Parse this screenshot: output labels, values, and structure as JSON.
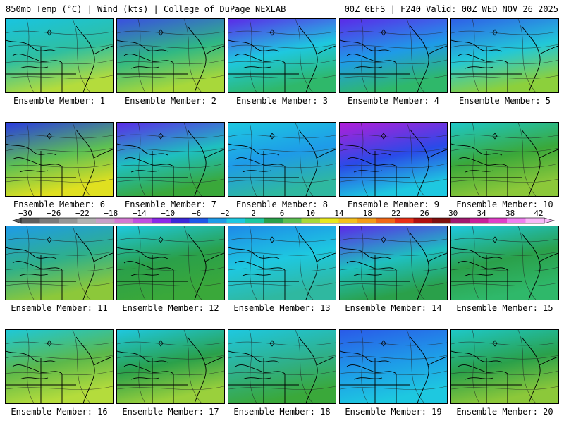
{
  "header": {
    "left": "850mb Temp (°C) | Wind (kts) | College of DuPage NEXLAB",
    "right": "00Z GEFS | F240 Valid: 00Z WED NOV 26 2025"
  },
  "panels": [
    {
      "caption": "Ensemble Member: 1",
      "base": "#2fbfa0",
      "north": "#19c4e0",
      "south": "#b4dc3c"
    },
    {
      "caption": "Ensemble Member: 2",
      "base": "#2fb884",
      "north": "#3a4fe0",
      "south": "#a8d83a"
    },
    {
      "caption": "Ensemble Member: 3",
      "base": "#1ec8e0",
      "north": "#5b2ae8",
      "south": "#2fb86a"
    },
    {
      "caption": "Ensemble Member: 4",
      "base": "#1e9be8",
      "north": "#5b2ae8",
      "south": "#2fb86a"
    },
    {
      "caption": "Ensemble Member: 5",
      "base": "#22c8d8",
      "north": "#2f5fe8",
      "south": "#8cd03c"
    },
    {
      "caption": "Ensemble Member: 6",
      "base": "#5cc054",
      "north": "#2a3ae0",
      "south": "#e0e020"
    },
    {
      "caption": "Ensemble Member: 7",
      "base": "#1ec0c0",
      "north": "#5a2ae8",
      "south": "#3aa83a"
    },
    {
      "caption": "Ensemble Member: 8",
      "base": "#1e9be8",
      "north": "#1ec8e0",
      "south": "#2fb8a0"
    },
    {
      "caption": "Ensemble Member: 9",
      "base": "#2a4ae8",
      "north": "#b21ed8",
      "south": "#1ec8e0"
    },
    {
      "caption": "Ensemble Member: 10",
      "base": "#3aa83a",
      "north": "#1ec8c8",
      "south": "#8cc83a"
    },
    {
      "caption": "Ensemble Member: 11",
      "base": "#2fb08a",
      "north": "#1e9be8",
      "south": "#8cc83a"
    },
    {
      "caption": "Ensemble Member: 12",
      "base": "#2aa04a",
      "north": "#1ec8e0",
      "south": "#3aa83a"
    },
    {
      "caption": "Ensemble Member: 13",
      "base": "#1ec8e0",
      "north": "#1e8ae8",
      "south": "#2fb8a0"
    },
    {
      "caption": "Ensemble Member: 14",
      "base": "#1ec0c0",
      "north": "#5b2ae8",
      "south": "#2aa04a"
    },
    {
      "caption": "Ensemble Member: 15",
      "base": "#2aa04a",
      "north": "#1ec8e0",
      "south": "#2fb86a"
    },
    {
      "caption": "Ensemble Member: 16",
      "base": "#5cb84a",
      "north": "#1ec8d8",
      "south": "#b4dc3c"
    },
    {
      "caption": "Ensemble Member: 17",
      "base": "#2aa04a",
      "north": "#1ec8e0",
      "south": "#9ad03c"
    },
    {
      "caption": "Ensemble Member: 18",
      "base": "#2fb08a",
      "north": "#1ec8e0",
      "south": "#3aa83a"
    },
    {
      "caption": "Ensemble Member: 19",
      "base": "#1e9be8",
      "north": "#2a5ae8",
      "south": "#1ec8e0"
    },
    {
      "caption": "Ensemble Member: 20",
      "base": "#2aa04a",
      "north": "#1ec8c8",
      "south": "#8cc83a"
    }
  ],
  "colorbar": {
    "labels": [
      "−30",
      "−26",
      "−22",
      "−18",
      "−14",
      "−10",
      "−6",
      "−2",
      "2",
      "6",
      "10",
      "14",
      "18",
      "22",
      "26",
      "30",
      "34",
      "38",
      "42"
    ],
    "colors": [
      "#5e5e5e",
      "#7a7a7a",
      "#969696",
      "#b2b2b2",
      "#c8a0c8",
      "#d27ad2",
      "#c050e0",
      "#8a2ae8",
      "#3a28d8",
      "#1e58e8",
      "#1e9be8",
      "#1ec8e0",
      "#1ec8a0",
      "#2aa04a",
      "#5cc054",
      "#a8d83a",
      "#e8e820",
      "#f4c020",
      "#f49c18",
      "#f06818",
      "#e83018",
      "#b01010",
      "#801010",
      "#a01a70",
      "#c8209a",
      "#e040c8",
      "#f080f0",
      "#f8b8f8"
    ]
  }
}
